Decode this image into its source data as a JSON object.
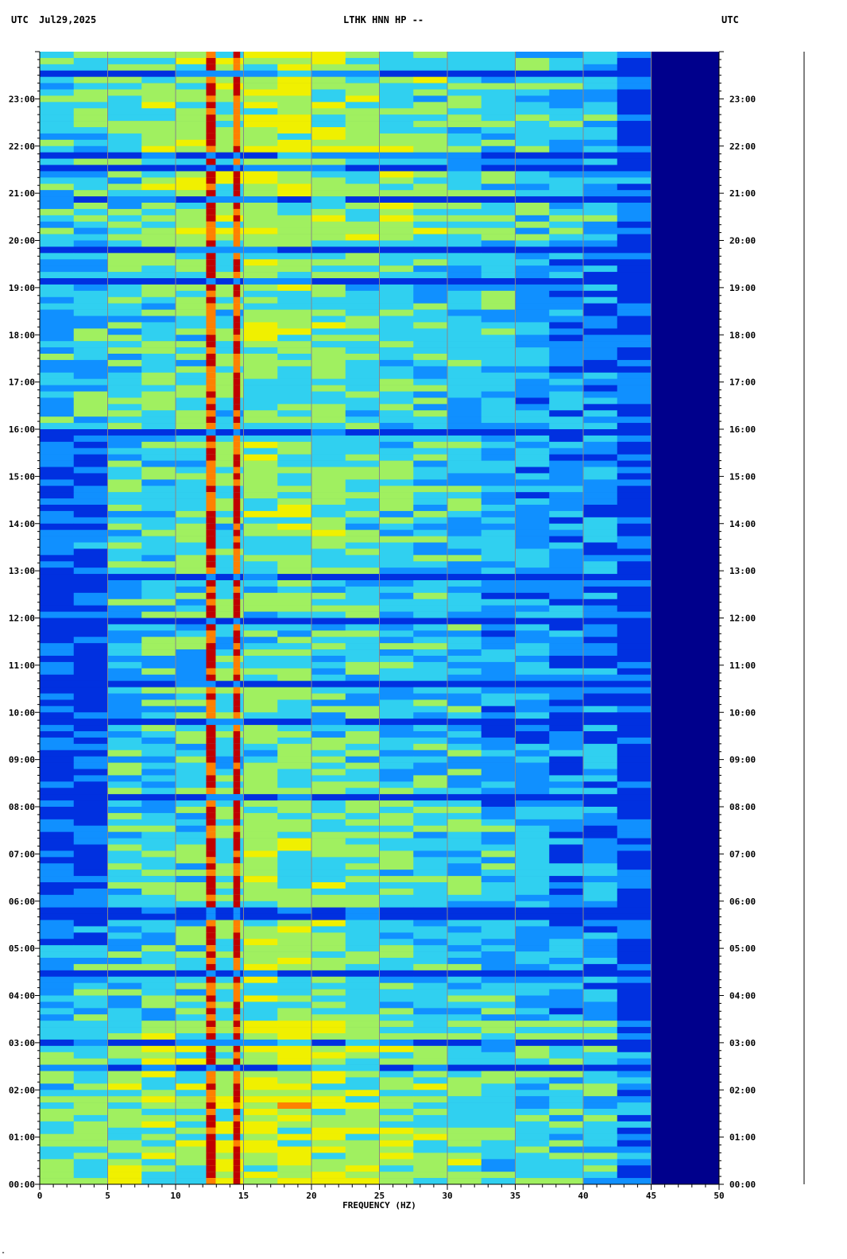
{
  "header": {
    "utc_left": "UTC",
    "date": "Jul29,2025",
    "station": "LTHK HNN HP --",
    "utc_right": "UTC"
  },
  "chart_data": {
    "type": "heatmap",
    "title": "LTHK HNN HP --",
    "xlabel": "FREQUENCY (HZ)",
    "ylabel": "UTC",
    "xlim": [
      0,
      50
    ],
    "ylim_hours": [
      0,
      24
    ],
    "x_ticks": [
      "0",
      "5",
      "10",
      "15",
      "20",
      "25",
      "30",
      "35",
      "40",
      "45",
      "50"
    ],
    "y_ticks": [
      "00:00",
      "01:00",
      "02:00",
      "03:00",
      "04:00",
      "05:00",
      "06:00",
      "07:00",
      "08:00",
      "09:00",
      "10:00",
      "11:00",
      "12:00",
      "13:00",
      "14:00",
      "15:00",
      "16:00",
      "17:00",
      "18:00",
      "19:00",
      "20:00",
      "21:00",
      "22:00",
      "23:00"
    ],
    "y_direction": "time increases upward",
    "grid": true,
    "colormap": [
      "#00008c",
      "#0030e0",
      "#1090ff",
      "#30d0f0",
      "#a0f060",
      "#f0f000",
      "#ff8000",
      "#c00000"
    ],
    "features": {
      "high_energy_bands_hz": [
        12.6,
        14.5
      ],
      "signal_cutoff_hz": 43,
      "quiet_background_hz": [
        45,
        50
      ]
    }
  },
  "corner_mark": "\""
}
